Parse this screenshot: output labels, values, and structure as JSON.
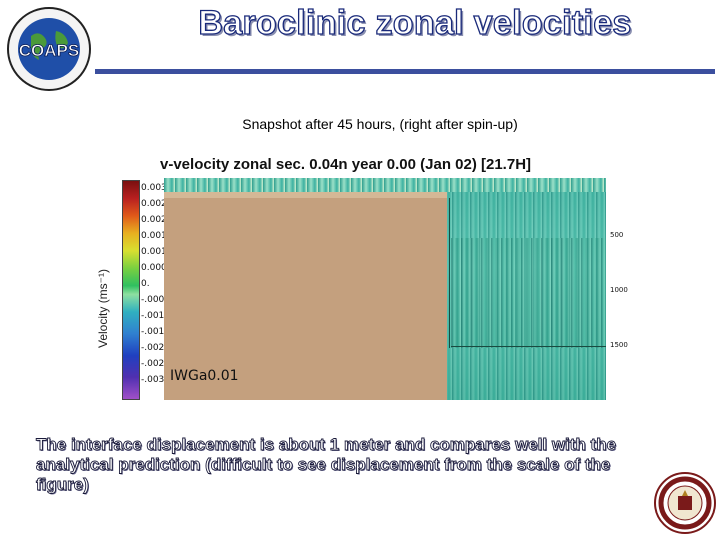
{
  "header": {
    "title": "Baroclinic zonal velocities",
    "logo_text": "COAPS"
  },
  "subtitle": "Snapshot after 45 hours, (right after spin-up)",
  "figure": {
    "title": "v-velocity zonal sec.  0.04n    year   0.00 (Jan 02) [21.7H]",
    "ylabel": "Velocity (ms⁻¹)",
    "colorbar_ticks": [
      "0.003",
      "0.002",
      "0.002",
      "0.001",
      "0.001",
      "0.000",
      "0.",
      "-.000",
      "-.001",
      "-.001",
      "-.002",
      "-.002",
      "-.003"
    ],
    "depth_labels": [
      "500",
      "1000",
      "1500"
    ],
    "annotation": "IWGa0.01"
  },
  "caption": "The interface displacement is about 1 meter and compares well with the analytical prediction (difficult to see displacement from the scale of the figure)"
}
